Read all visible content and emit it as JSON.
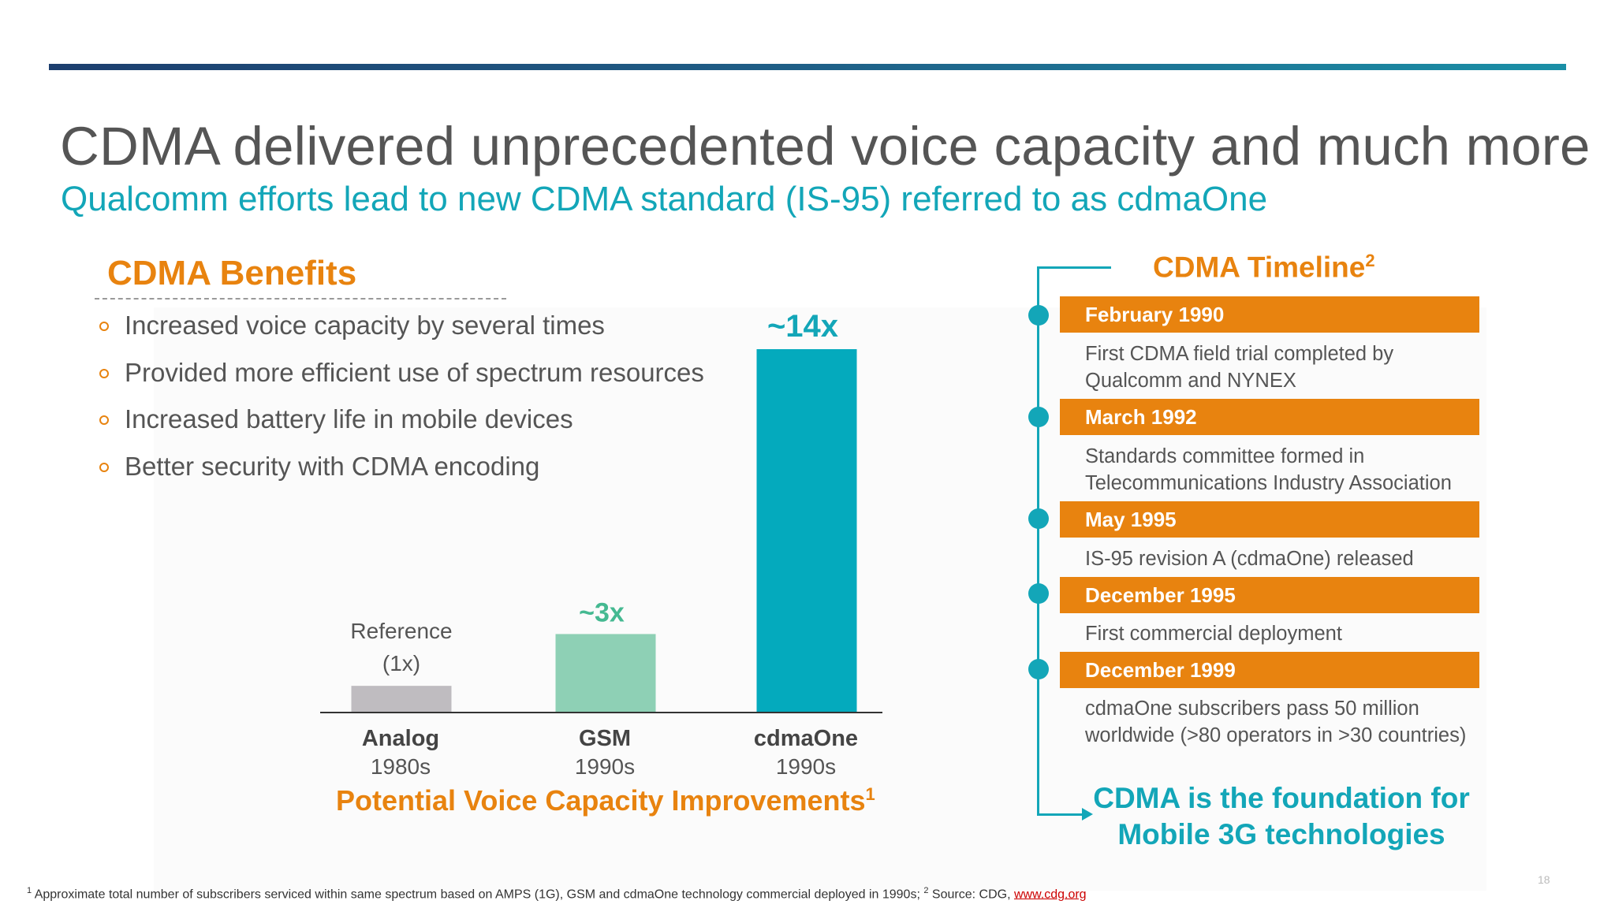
{
  "slide": {
    "title": "CDMA delivered unprecedented voice capacity and much more",
    "subtitle": "Qualcomm efforts lead to new CDMA standard (IS-95) referred to as cdmaOne",
    "page_number": "18"
  },
  "benefits": {
    "heading": "CDMA Benefits",
    "items": [
      "Increased voice capacity by several times",
      "Provided more efficient use of spectrum resources",
      "Increased battery life in mobile devices",
      "Better security with CDMA encoding"
    ]
  },
  "chart_data": {
    "type": "bar",
    "title": "Potential Voice Capacity Improvements",
    "title_footnote": "1",
    "categories": [
      "Analog",
      "GSM",
      "cdmaOne"
    ],
    "category_sublabels": [
      "1980s",
      "1990s",
      "1990s"
    ],
    "values": [
      1,
      3,
      14
    ],
    "data_labels": [
      "Reference",
      "~3x",
      "~14x"
    ],
    "reference_sublabel": "(1x)",
    "colors": [
      "#bfbcc0",
      "#8ed0b5",
      "#04aabd"
    ],
    "label_colors": [
      "#555555",
      "#45b991",
      "#13a6b8"
    ],
    "ylim": [
      0,
      14
    ],
    "grid": false,
    "xlabel": "",
    "ylabel": ""
  },
  "timeline": {
    "heading": "CDMA Timeline",
    "heading_footnote": "2",
    "events": [
      {
        "date": "February 1990",
        "description": "First CDMA field trial completed by Qualcomm and NYNEX"
      },
      {
        "date": "March 1992",
        "description": "Standards committee formed in Telecommunications Industry Association"
      },
      {
        "date": "May 1995",
        "description": "IS-95 revision A (cdmaOne) released"
      },
      {
        "date": "December 1995",
        "description": "First commercial deployment"
      },
      {
        "date": "December 1999",
        "description": "cdmaOne subscribers pass 50 million worldwide (>80 operators in >30 countries)"
      }
    ],
    "footer_line1": "CDMA is the foundation for",
    "footer_line2": "Mobile 3G technologies"
  },
  "footnote": {
    "marker1": "1",
    "text1": "Approximate total number of subscribers serviced within same spectrum based on AMPS (1G), GSM and cdmaOne technology commercial deployed in 1990s;",
    "marker2": "2",
    "text2": "Source:  CDG,",
    "link": "www.cdg.org"
  },
  "colors": {
    "accent_orange": "#e8830f",
    "accent_teal": "#13a6b8",
    "text_gray": "#555555"
  }
}
